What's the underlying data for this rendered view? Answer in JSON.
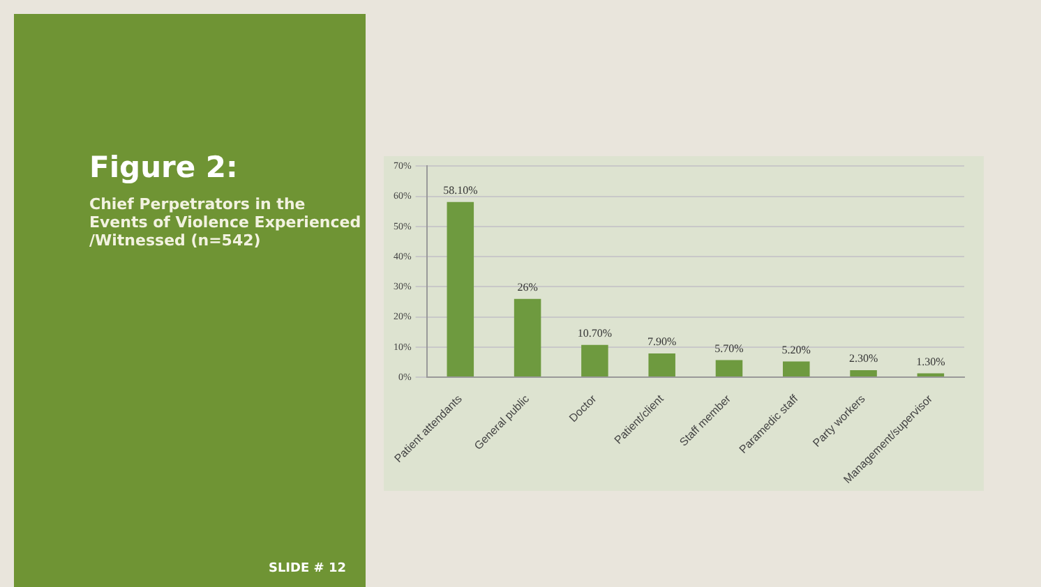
{
  "chart_data": {
    "type": "bar",
    "title": "Figure 2:",
    "subtitle": "Chief Perpetrators in the Events of Violence Experienced /Witnessed (n=542)",
    "annotations": [
      "SLIDE # 12"
    ],
    "categories": [
      "Patient attendants",
      "General public",
      "Doctor",
      "Patient/client",
      "Staff member",
      "Paramedic staff",
      "Party workers",
      "Management/supervisor"
    ],
    "values": [
      58.1,
      26,
      10.7,
      7.9,
      5.7,
      5.2,
      2.3,
      1.3
    ],
    "value_labels": [
      "58.10%",
      "26%",
      "10.70%",
      "7.90%",
      "5.70%",
      "5.20%",
      "2.30%",
      "1.30%"
    ],
    "color": "#6e9a3f",
    "ylim": [
      0,
      70
    ],
    "yticks": [
      {
        "value": 0,
        "label": "0%"
      },
      {
        "value": 10,
        "label": "10%"
      },
      {
        "value": 20,
        "label": "20%"
      },
      {
        "value": 30,
        "label": "30%"
      },
      {
        "value": 40,
        "label": "40%"
      },
      {
        "value": 50,
        "label": "50%"
      },
      {
        "value": 60,
        "label": "60%"
      },
      {
        "value": 70,
        "label": "70%"
      }
    ],
    "grid": "y"
  }
}
